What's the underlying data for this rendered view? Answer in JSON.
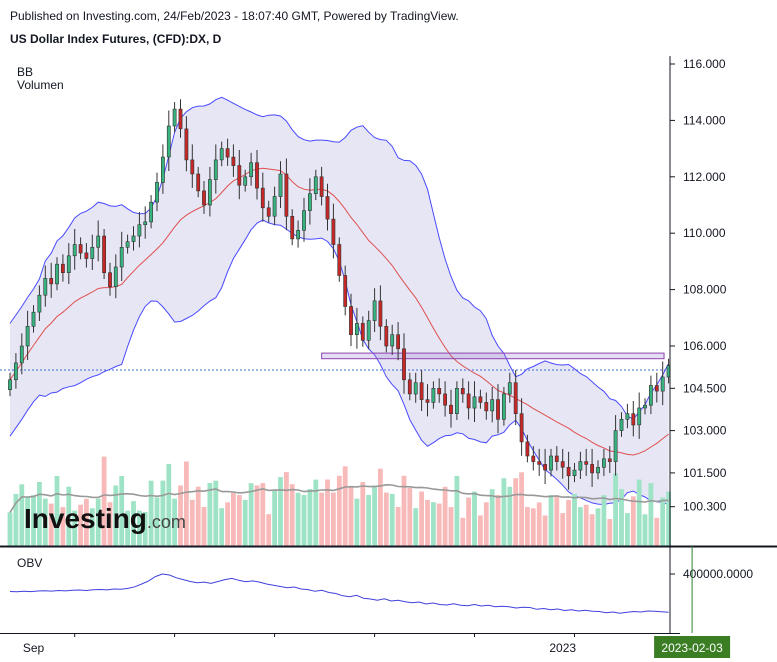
{
  "header": {
    "published_line": "Published on Investing.com, 24/Feb/2023 - 18:07:40 GMT, Powered by TradingView.",
    "symbol_line": "US Dollar Index Futures, (CFD):DX, D"
  },
  "watermark": {
    "text": "Investing",
    "suffix": ".com"
  },
  "colors": {
    "up": "#26a69a",
    "up_fill": "#38b27f",
    "down": "#ef5350",
    "down_fill": "#c62828",
    "bb_band": "#4a4aff",
    "bb_fill": "#e6e6f5",
    "bb_mid": "#e05050",
    "vol_up": "#9fe3c6",
    "vol_down": "#f8b9b9",
    "vol_ma": "#999999",
    "obv": "#4040dd",
    "cursor": "#2e7d32",
    "date_badge": "#3b7d23"
  },
  "chart_data": [
    {
      "type": "candlestick",
      "indicator_labels": [
        "BB",
        "Volumen"
      ],
      "y_axis": {
        "ticks": [
          "116.000",
          "114.000",
          "112.000",
          "110.000",
          "108.000",
          "106.000",
          "104.500",
          "103.000",
          "101.500",
          "100.300"
        ],
        "tick_values": [
          116.0,
          114.0,
          112.0,
          110.0,
          108.0,
          106.0,
          104.5,
          103.0,
          101.5,
          100.3
        ]
      },
      "x_axis": {
        "labels": [
          "Sep",
          "2023"
        ],
        "label_positions": [
          4,
          94
        ],
        "highlight_label": "2023-02-03",
        "highlight_index": 116
      },
      "resistance_zone": [
        105.55,
        105.75
      ],
      "last_price": 105.15,
      "close": [
        104.8,
        105.4,
        106.0,
        106.7,
        107.2,
        107.8,
        108.4,
        108.2,
        108.9,
        108.6,
        109.2,
        109.6,
        109.3,
        109.1,
        109.5,
        109.9,
        108.6,
        108.1,
        108.8,
        109.5,
        109.7,
        109.9,
        110.3,
        110.4,
        111.1,
        111.8,
        112.7,
        113.8,
        114.4,
        113.7,
        112.6,
        112.1,
        111.5,
        111.0,
        111.9,
        112.6,
        113.0,
        112.7,
        112.4,
        111.7,
        112.0,
        112.5,
        111.6,
        110.9,
        110.6,
        111.3,
        112.1,
        110.6,
        109.8,
        110.1,
        110.8,
        111.4,
        112.0,
        111.3,
        110.5,
        109.6,
        108.5,
        107.4,
        106.4,
        106.8,
        106.2,
        106.9,
        107.6,
        106.7,
        106.0,
        106.4,
        105.9,
        104.8,
        104.3,
        104.7,
        104.1,
        104.0,
        104.5,
        104.3,
        103.9,
        103.6,
        104.5,
        104.3,
        103.8,
        104.2,
        104.0,
        103.7,
        104.1,
        103.4,
        104.3,
        104.7,
        103.6,
        102.6,
        102.1,
        101.9,
        101.8,
        101.6,
        102.1,
        101.9,
        101.7,
        101.4,
        101.6,
        101.9,
        101.8,
        101.5,
        101.7,
        102.0,
        101.9,
        103.0,
        103.4,
        103.6,
        103.2,
        103.8,
        103.9,
        104.6,
        104.4,
        104.9,
        105.3
      ]
    },
    {
      "type": "line",
      "indicator_label": "OBV",
      "y_axis": {
        "ticks": [
          "400000.0000"
        ],
        "tick_values": [
          400000
        ]
      },
      "values": [
        260000,
        258000,
        262000,
        259000,
        264000,
        266000,
        263000,
        268000,
        265000,
        270000,
        272000,
        268000,
        274000,
        276000,
        273000,
        280000,
        278000,
        285000,
        298000,
        320000,
        345000,
        380000,
        400000,
        392000,
        370000,
        355000,
        340000,
        330000,
        335000,
        325000,
        340000,
        355000,
        365000,
        350000,
        338000,
        345000,
        335000,
        320000,
        310000,
        300000,
        290000,
        296000,
        280000,
        275000,
        262000,
        270000,
        252000,
        244000,
        226000,
        218000,
        230000,
        206000,
        200000,
        190000,
        202000,
        184000,
        190000,
        178000,
        170000,
        176000,
        160000,
        168000,
        156000,
        152000,
        162000,
        150000,
        146000,
        156000,
        144000,
        150000,
        138000,
        142000,
        138000,
        128000,
        134000,
        132000,
        118000,
        124000,
        114000,
        120000,
        108000,
        114000,
        104000,
        110000,
        102000,
        100000,
        90000,
        96000,
        86000,
        94000,
        100000,
        96000,
        104000,
        102000,
        98000,
        94000
      ]
    }
  ]
}
